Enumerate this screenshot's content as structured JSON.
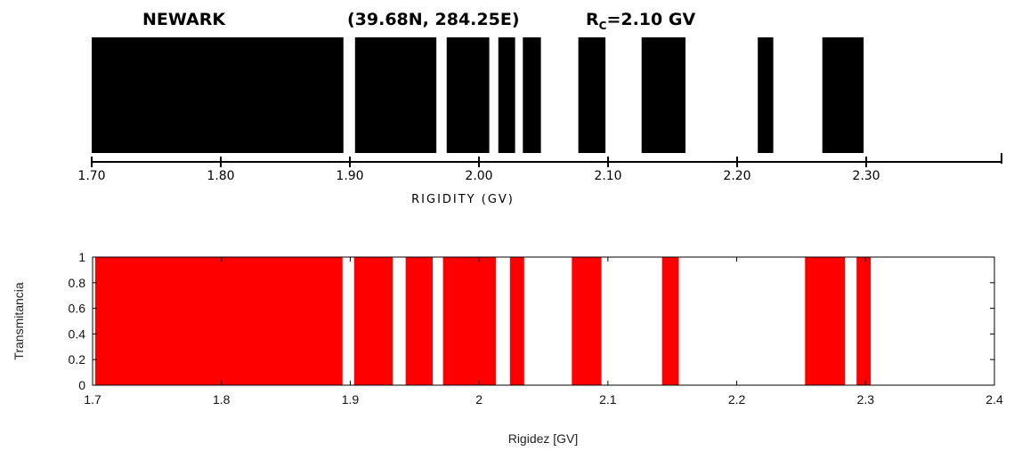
{
  "chart_data": [
    {
      "type": "bar",
      "header": {
        "station": "NEWARK",
        "coords": "(39.68N, 284.25E)",
        "rc_symbol": "R",
        "rc_subscript": "C",
        "rc_value": "=2.10 GV"
      },
      "xlabel": "RIGIDITY  (GV)",
      "ylabel": "",
      "xlim": [
        1.7,
        2.4
      ],
      "xticks": [
        {
          "v": 1.7,
          "label": "1.70"
        },
        {
          "v": 1.8,
          "label": "1.80"
        },
        {
          "v": 1.9,
          "label": "1.90"
        },
        {
          "v": 2.0,
          "label": "2.00"
        },
        {
          "v": 2.1,
          "label": "2.10"
        },
        {
          "v": 2.2,
          "label": "2.20"
        },
        {
          "v": 2.3,
          "label": "2.30"
        }
      ],
      "bar_color": "#000000",
      "allowed_intervals": [
        [
          1.7,
          1.895
        ],
        [
          1.904,
          1.967
        ],
        [
          1.975,
          2.008
        ],
        [
          2.015,
          2.028
        ],
        [
          2.034,
          2.048
        ],
        [
          2.077,
          2.098
        ],
        [
          2.126,
          2.16
        ],
        [
          2.216,
          2.228
        ],
        [
          2.266,
          2.298
        ]
      ]
    },
    {
      "type": "bar",
      "xlabel": "Rigidez [GV]",
      "ylabel": "Transmitancia",
      "xlim": [
        1.7,
        2.4
      ],
      "ylim": [
        0,
        1
      ],
      "xticks": [
        {
          "v": 1.7,
          "label": "1.7"
        },
        {
          "v": 1.8,
          "label": "1.8"
        },
        {
          "v": 1.9,
          "label": "1.9"
        },
        {
          "v": 2.0,
          "label": "2"
        },
        {
          "v": 2.1,
          "label": "2.1"
        },
        {
          "v": 2.2,
          "label": "2.2"
        },
        {
          "v": 2.3,
          "label": "2.3"
        },
        {
          "v": 2.4,
          "label": "2.4"
        }
      ],
      "yticks": [
        {
          "v": 0,
          "label": "0"
        },
        {
          "v": 0.2,
          "label": "0.2"
        },
        {
          "v": 0.4,
          "label": "0.4"
        },
        {
          "v": 0.6,
          "label": "0.6"
        },
        {
          "v": 0.8,
          "label": "0.8"
        },
        {
          "v": 1,
          "label": "1"
        }
      ],
      "bar_color": "#ff0000",
      "allowed_intervals": [
        [
          1.702,
          1.894
        ],
        [
          1.903,
          1.933
        ],
        [
          1.943,
          1.964
        ],
        [
          1.972,
          2.013
        ],
        [
          2.024,
          2.035
        ],
        [
          2.072,
          2.095
        ],
        [
          2.142,
          2.155
        ],
        [
          2.253,
          2.284
        ],
        [
          2.293,
          2.304
        ]
      ],
      "transmittance": 1
    }
  ]
}
